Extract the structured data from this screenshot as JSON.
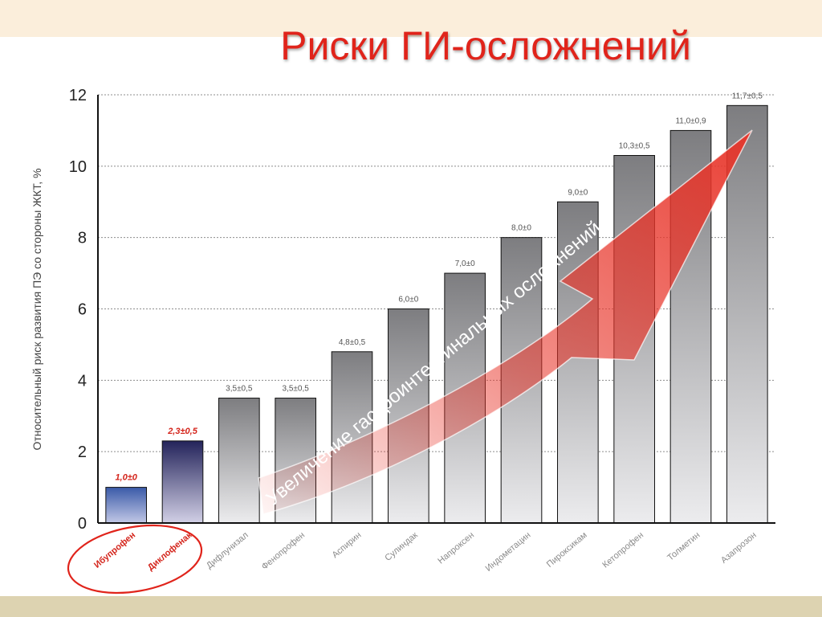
{
  "title": "Риски ГИ-осложнений",
  "chart_data": {
    "type": "bar",
    "ylabel": "Относительный риск развития ПЭ со стороны ЖКТ, %",
    "ylim": [
      0,
      12
    ],
    "yticks": [
      0,
      2,
      4,
      6,
      8,
      10,
      12
    ],
    "grid": true,
    "categories": [
      "Ибупрофен",
      "Диклофенак",
      "Дифлунизал",
      "Фенопрофен",
      "Аспирин",
      "Сулиндак",
      "Напроксен",
      "Индометацин",
      "Пироксикам",
      "Кетопрофен",
      "Толметин",
      "Азапрозон"
    ],
    "values": [
      1.0,
      2.3,
      3.5,
      3.5,
      4.8,
      6.0,
      7.0,
      8.0,
      9.0,
      10.3,
      11.0,
      11.7
    ],
    "data_labels": [
      "1,0±0",
      "2,3±0,5",
      "3,5±0,5",
      "3,5±0,5",
      "4,8±0,5",
      "6,0±0",
      "7,0±0",
      "8,0±0",
      "9,0±0",
      "10,3±0,5",
      "11,0±0,9",
      "11,7±0,5"
    ],
    "highlighted": [
      "Ибупрофен",
      "Диклофенак"
    ],
    "annotation": "Увеличение гастроинтестинальных осложнений",
    "colors": {
      "highlight_bar_1": "#3a5aa8",
      "highlight_bar_2": "#23235a",
      "regular_bar": "#7d7d80",
      "highlight_text": "#d4241b",
      "arrow": "#e8352a"
    }
  }
}
